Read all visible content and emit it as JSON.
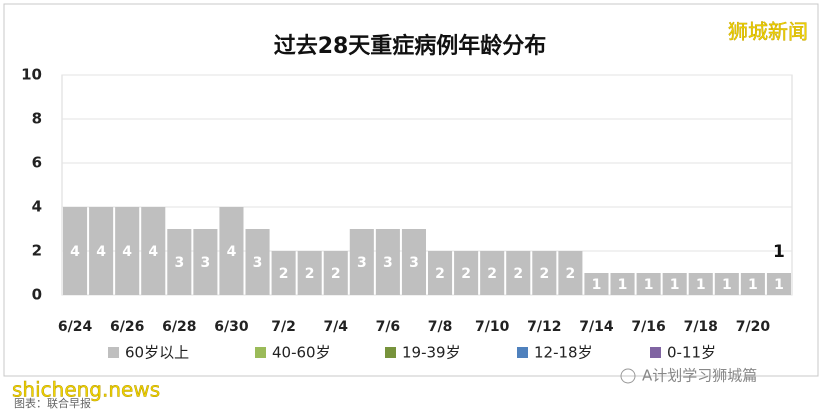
{
  "chart_data": {
    "type": "bar",
    "stacked": true,
    "title": "过去28天重症病例年龄分布",
    "categories": [
      "6/24",
      null,
      "6/26",
      null,
      "6/28",
      null,
      "6/30",
      null,
      "7/2",
      null,
      "7/4",
      null,
      "7/6",
      null,
      "7/8",
      null,
      "7/10",
      null,
      "7/12",
      null,
      "7/14",
      null,
      "7/16",
      null,
      "7/18",
      null,
      "7/20",
      null
    ],
    "series": [
      {
        "name": "60岁以上",
        "color": "#bfbfbf",
        "values": [
          4,
          4,
          4,
          4,
          3,
          3,
          4,
          3,
          2,
          2,
          2,
          3,
          3,
          3,
          2,
          2,
          2,
          2,
          2,
          2,
          1,
          1,
          1,
          1,
          1,
          1,
          1,
          1
        ]
      },
      {
        "name": "40-60岁",
        "color": "#9bbb59",
        "values": [
          0,
          0,
          0,
          0,
          0,
          0,
          0,
          0,
          0,
          0,
          0,
          0,
          0,
          0,
          0,
          0,
          0,
          0,
          0,
          0,
          0,
          0,
          0,
          0,
          0,
          0,
          0,
          0
        ]
      },
      {
        "name": "19-39岁",
        "color": "#77933c",
        "values": [
          0,
          0,
          0,
          0,
          0,
          0,
          0,
          0,
          0,
          0,
          0,
          0,
          0,
          0,
          0,
          0,
          0,
          0,
          0,
          0,
          0,
          0,
          0,
          0,
          0,
          0,
          0,
          0
        ]
      },
      {
        "name": "12-18岁",
        "color": "#4f81bd",
        "values": [
          0,
          0,
          0,
          0,
          0,
          0,
          0,
          0,
          0,
          0,
          0,
          0,
          0,
          0,
          0,
          0,
          0,
          0,
          0,
          0,
          0,
          0,
          0,
          0,
          0,
          0,
          0,
          0
        ]
      },
      {
        "name": "0-11岁",
        "color": "#8064a2",
        "values": [
          0,
          0,
          0,
          0,
          0,
          0,
          0,
          0,
          0,
          0,
          0,
          0,
          0,
          0,
          0,
          0,
          0,
          0,
          0,
          0,
          0,
          0,
          0,
          0,
          0,
          0,
          0,
          0
        ]
      }
    ],
    "annotation": "1",
    "ylim": [
      0,
      10
    ],
    "yticks": [
      0,
      2,
      4,
      6,
      8,
      10
    ],
    "grid": true,
    "legend": "bottom"
  },
  "watermarks": {
    "top_right": "狮城新闻",
    "site": "shicheng.news",
    "source": "图表：联合早报",
    "account": "A计划学习狮城篇"
  }
}
